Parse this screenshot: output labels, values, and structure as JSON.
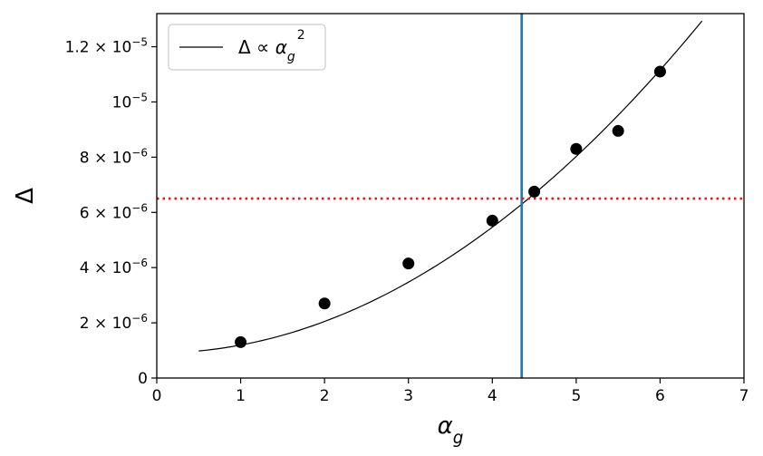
{
  "chart_data": {
    "type": "scatter",
    "xlabel": "α_g",
    "ylabel": "Δ",
    "xlim": [
      0,
      7
    ],
    "ylim": [
      0,
      1.32e-05
    ],
    "grid": false,
    "legend_placement": "top-left",
    "x_ticks": [
      {
        "value": 0,
        "label": "0"
      },
      {
        "value": 1,
        "label": "1"
      },
      {
        "value": 2,
        "label": "2"
      },
      {
        "value": 3,
        "label": "3"
      },
      {
        "value": 4,
        "label": "4"
      },
      {
        "value": 5,
        "label": "5"
      },
      {
        "value": 6,
        "label": "6"
      },
      {
        "value": 7,
        "label": "7"
      }
    ],
    "y_ticks": [
      {
        "value": 0,
        "mant": "0",
        "exp": ""
      },
      {
        "value": 2e-06,
        "mant": "2 × 10",
        "exp": "−6"
      },
      {
        "value": 4e-06,
        "mant": "4 × 10",
        "exp": "−6"
      },
      {
        "value": 6e-06,
        "mant": "6 × 10",
        "exp": "−6"
      },
      {
        "value": 8e-06,
        "mant": "8 × 10",
        "exp": "−6"
      },
      {
        "value": 1e-05,
        "mant": "10",
        "exp": "−5"
      },
      {
        "value": 1.2e-05,
        "mant": "1.2 × 10",
        "exp": "−5"
      }
    ],
    "series": [
      {
        "kind": "scatter",
        "color": "#000000",
        "x": [
          1,
          2,
          3,
          4,
          4.5,
          5,
          5.5,
          6
        ],
        "y": [
          1.3e-06,
          2.7e-06,
          4.15e-06,
          5.7e-06,
          6.75e-06,
          8.3e-06,
          8.95e-06,
          1.11e-05
        ]
      },
      {
        "kind": "line",
        "color": "#000000",
        "name": "Δ ∝ α_g²",
        "x_range": [
          0.5,
          6.5
        ],
        "coef": 2.846e-07,
        "offset": 9.1e-07
      }
    ],
    "reference_lines": [
      {
        "orientation": "vertical",
        "value": 4.35,
        "color": "#1f77b4",
        "style": "solid"
      },
      {
        "orientation": "horizontal",
        "value": 6.5e-06,
        "color": "#e31a1c",
        "style": "dotted"
      }
    ],
    "legend": {
      "label": "Δ ∝ α_g²"
    }
  }
}
